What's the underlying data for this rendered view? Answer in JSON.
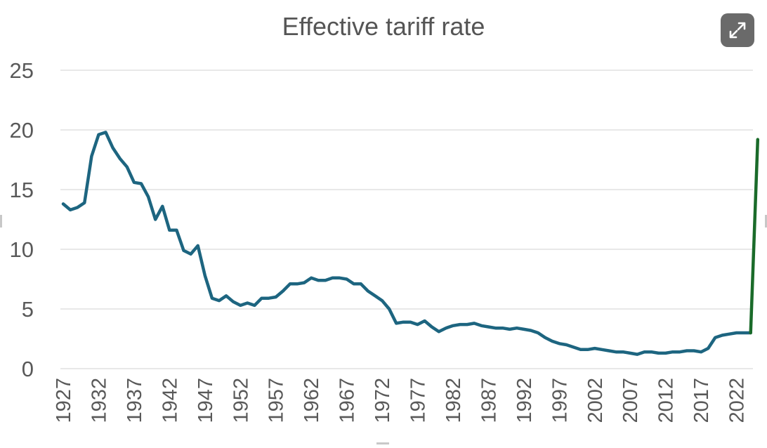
{
  "chart_data": {
    "type": "line",
    "title": "Effective tariff rate",
    "xlabel": "",
    "ylabel": "",
    "xlim": [
      1927,
      2025
    ],
    "ylim": [
      0,
      25
    ],
    "yticks": [
      0,
      5,
      10,
      15,
      20,
      25
    ],
    "yticklabels": [
      "0",
      "5",
      "10",
      "15",
      "20",
      "25"
    ],
    "xticks": [
      1927,
      1932,
      1937,
      1942,
      1947,
      1952,
      1957,
      1962,
      1967,
      1972,
      1977,
      1982,
      1987,
      1992,
      1997,
      2002,
      2007,
      2012,
      2017,
      2022
    ],
    "xticklabels": [
      "1927",
      "1932",
      "1937",
      "1942",
      "1947",
      "1952",
      "1957",
      "1962",
      "1967",
      "1972",
      "1977",
      "1982",
      "1987",
      "1992",
      "1997",
      "2002",
      "2007",
      "2012",
      "2017",
      "2022"
    ],
    "grid": "horizontal",
    "series": [
      {
        "color": "#1d6580",
        "x": [
          1927,
          1928,
          1929,
          1930,
          1931,
          1932,
          1933,
          1934,
          1935,
          1936,
          1937,
          1938,
          1939,
          1940,
          1941,
          1942,
          1943,
          1944,
          1945,
          1946,
          1947,
          1948,
          1949,
          1950,
          1951,
          1952,
          1953,
          1954,
          1955,
          1956,
          1957,
          1958,
          1959,
          1960,
          1961,
          1962,
          1963,
          1964,
          1965,
          1966,
          1967,
          1968,
          1969,
          1970,
          1971,
          1972,
          1973,
          1974,
          1975,
          1976,
          1977,
          1978,
          1979,
          1980,
          1981,
          1982,
          1983,
          1984,
          1985,
          1986,
          1987,
          1988,
          1989,
          1990,
          1991,
          1992,
          1993,
          1994,
          1995,
          1996,
          1997,
          1998,
          1999,
          2000,
          2001,
          2002,
          2003,
          2004,
          2005,
          2006,
          2007,
          2008,
          2009,
          2010,
          2011,
          2012,
          2013,
          2014,
          2015,
          2016,
          2017,
          2018,
          2019,
          2020,
          2021,
          2022,
          2023,
          2024
        ],
        "y": [
          13.8,
          13.3,
          13.5,
          13.9,
          17.8,
          19.6,
          19.8,
          18.5,
          17.6,
          16.9,
          15.6,
          15.5,
          14.4,
          12.5,
          13.6,
          11.6,
          11.6,
          9.9,
          9.6,
          10.3,
          7.8,
          5.9,
          5.7,
          6.1,
          5.6,
          5.3,
          5.5,
          5.3,
          5.9,
          5.9,
          6.0,
          6.5,
          7.1,
          7.1,
          7.2,
          7.6,
          7.4,
          7.4,
          7.6,
          7.6,
          7.5,
          7.1,
          7.1,
          6.5,
          6.1,
          5.7,
          5.0,
          3.8,
          3.9,
          3.9,
          3.7,
          4.0,
          3.5,
          3.1,
          3.4,
          3.6,
          3.7,
          3.7,
          3.8,
          3.6,
          3.5,
          3.4,
          3.4,
          3.3,
          3.4,
          3.3,
          3.2,
          3.0,
          2.6,
          2.3,
          2.1,
          2.0,
          1.8,
          1.6,
          1.6,
          1.7,
          1.6,
          1.5,
          1.4,
          1.4,
          1.3,
          1.2,
          1.4,
          1.4,
          1.3,
          1.3,
          1.4,
          1.4,
          1.5,
          1.5,
          1.4,
          1.7,
          2.6,
          2.8,
          2.9,
          3.0,
          3.0,
          3.0
        ]
      },
      {
        "color": "#1a6b2a",
        "x": [
          2024,
          2025
        ],
        "y": [
          3.0,
          19.2
        ]
      }
    ]
  },
  "ui": {
    "expand_icon": "expand-arrows-icon",
    "expand_color": "#5e5e5e"
  }
}
